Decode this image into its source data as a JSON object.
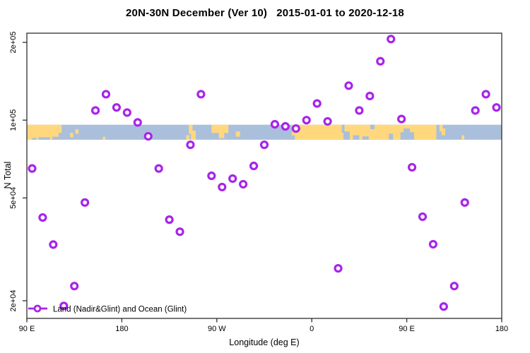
{
  "title": "20N-30N December (Ver 10)   2015-01-01 to 2020-12-18",
  "chart_data": {
    "type": "scatter",
    "title": "20N-30N December (Ver 10)   2015-01-01 to 2020-12-18",
    "xlabel": "Longitude (deg E)",
    "ylabel": "N Total",
    "y_scale": "log10",
    "xlim": [
      90,
      540
    ],
    "ylim": [
      17000,
      235000
    ],
    "grid": "off",
    "legend_position": "bottom-left",
    "x_ticks": [
      {
        "lon": 90,
        "label": "90 E"
      },
      {
        "lon": 180,
        "label": "180"
      },
      {
        "lon": 270,
        "label": "90 W"
      },
      {
        "lon": 360,
        "label": "0"
      },
      {
        "lon": 450,
        "label": "90 E"
      },
      {
        "lon": 540,
        "label": "180"
      }
    ],
    "y_ticks": [
      {
        "value": 20000,
        "label": "2e+04"
      },
      {
        "value": 50000,
        "label": "5e+04"
      },
      {
        "value": 100000,
        "label": "1e+05"
      },
      {
        "value": 200000,
        "label": "2e+05"
      }
    ],
    "legend": {
      "label": "Land (Nadir&Glint) and Ocean (Glint)"
    },
    "series": [
      {
        "name": "Land (Nadir&Glint) and Ocean (Glint)",
        "marker": "open-circle",
        "color": "#A824EA",
        "points": [
          [
            95,
            65000
          ],
          [
            105,
            42000
          ],
          [
            115,
            33000
          ],
          [
            125,
            19100
          ],
          [
            135,
            22800
          ],
          [
            145,
            48000
          ],
          [
            155,
            109000
          ],
          [
            165,
            126000
          ],
          [
            175,
            112000
          ],
          [
            185,
            107000
          ],
          [
            195,
            98000
          ],
          [
            205,
            86600
          ],
          [
            215,
            65000
          ],
          [
            225,
            41200
          ],
          [
            235,
            37000
          ],
          [
            245,
            80300
          ],
          [
            255,
            126000
          ],
          [
            265,
            60900
          ],
          [
            275,
            55100
          ],
          [
            285,
            59400
          ],
          [
            295,
            56500
          ],
          [
            305,
            66500
          ],
          [
            315,
            80300
          ],
          [
            325,
            96400
          ],
          [
            335,
            94600
          ],
          [
            345,
            92800
          ],
          [
            355,
            100000
          ],
          [
            365,
            116000
          ],
          [
            375,
            98900
          ],
          [
            385,
            26700
          ],
          [
            395,
            136000
          ],
          [
            405,
            109000
          ],
          [
            415,
            124000
          ],
          [
            425,
            169000
          ],
          [
            435,
            206000
          ],
          [
            445,
            101000
          ],
          [
            455,
            65700
          ],
          [
            465,
            42300
          ],
          [
            475,
            33100
          ],
          [
            485,
            19000
          ],
          [
            495,
            22800
          ],
          [
            505,
            48000
          ],
          [
            515,
            109000
          ],
          [
            525,
            126000
          ],
          [
            535,
            112000
          ]
        ]
      }
    ],
    "map_band": {
      "description": "land/ocean strip for 20N-30N latitude band",
      "ocean_color": "#AABFDB",
      "land_color": "#FFD87E",
      "n_top": 96000,
      "n_bottom": 84000,
      "land_segments": [
        {
          "l0": 90,
          "l1": 120,
          "t": 0,
          "b": 1
        },
        {
          "l0": 120,
          "l1": 123,
          "t": 0,
          "b": 0.55
        },
        {
          "l0": 131,
          "l1": 134,
          "t": 0.55,
          "b": 0.85
        },
        {
          "l0": 136,
          "l1": 139,
          "t": 0.3,
          "b": 0.6
        },
        {
          "l0": 162,
          "l1": 164.5,
          "t": 0.8,
          "b": 1
        },
        {
          "l0": 241,
          "l1": 244,
          "t": 0.7,
          "b": 1
        },
        {
          "l0": 243.5,
          "l1": 247,
          "t": 0,
          "b": 0.6
        },
        {
          "l0": 245.5,
          "l1": 250,
          "t": 0.4,
          "b": 1
        },
        {
          "l0": 265,
          "l1": 281,
          "t": 0,
          "b": 0.55
        },
        {
          "l0": 272,
          "l1": 277,
          "t": 0.55,
          "b": 0.9
        },
        {
          "l0": 288,
          "l1": 292,
          "t": 0.45,
          "b": 0.8
        },
        {
          "l0": 341,
          "l1": 478,
          "t": 0,
          "b": 1
        },
        {
          "l0": 481,
          "l1": 484,
          "t": 0,
          "b": 0.45
        },
        {
          "l0": 483,
          "l1": 486.5,
          "t": 0.25,
          "b": 0.7
        },
        {
          "l0": 502,
          "l1": 504.5,
          "t": 0.7,
          "b": 1
        }
      ],
      "ocean_cutouts": [
        {
          "l0": 95,
          "l1": 99,
          "t": 0.88,
          "b": 1
        },
        {
          "l0": 101,
          "l1": 112,
          "t": 0.84,
          "b": 1
        },
        {
          "l0": 114,
          "l1": 120,
          "t": 0.8,
          "b": 1
        },
        {
          "l0": 341,
          "l1": 344,
          "t": 0.72,
          "b": 1
        },
        {
          "l0": 388.5,
          "l1": 391,
          "t": 0,
          "b": 0.55
        },
        {
          "l0": 390,
          "l1": 396,
          "t": 0.45,
          "b": 1
        },
        {
          "l0": 399,
          "l1": 405,
          "t": 0.7,
          "b": 1
        },
        {
          "l0": 408,
          "l1": 414,
          "t": 0.78,
          "b": 1
        },
        {
          "l0": 415.5,
          "l1": 419.5,
          "t": 0,
          "b": 0.3
        },
        {
          "l0": 433,
          "l1": 437,
          "t": 0.6,
          "b": 1
        },
        {
          "l0": 444,
          "l1": 457,
          "t": 0.5,
          "b": 1
        },
        {
          "l0": 447,
          "l1": 453,
          "t": 0.25,
          "b": 1
        }
      ]
    },
    "frame_color": "#2e2e2e",
    "marker_color": "#A824EA"
  }
}
